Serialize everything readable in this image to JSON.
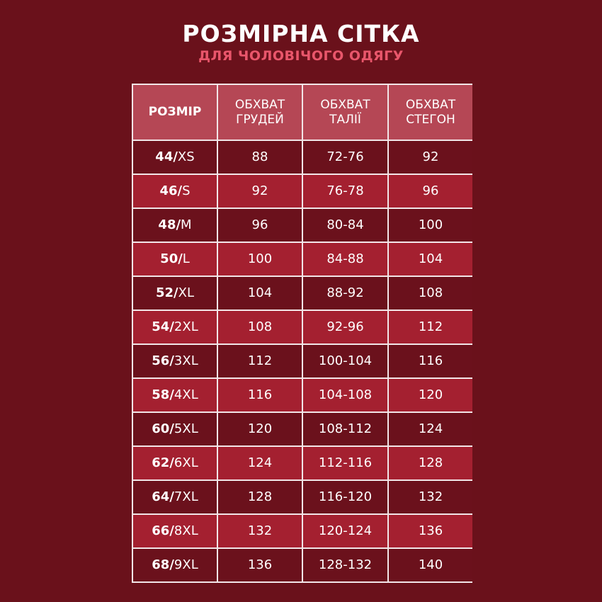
{
  "title": "РОЗМІРНА СІТКА",
  "subtitle": "ДЛЯ ЧОЛОВІЧОГО ОДЯГУ",
  "colors": {
    "background": "#6a111b",
    "header": "#b54755",
    "row_dark": "#6b111c",
    "row_light": "#a42030",
    "subtitle": "#e9566b"
  },
  "table": {
    "headers": [
      "РОЗМІР",
      "ОБХВАТ\nГРУДЕЙ",
      "ОБХВАТ\nТАЛІЇ",
      "ОБХВАТ\nСТЕГОН"
    ],
    "rows": [
      {
        "num": "44/",
        "letter": "XS",
        "chest": "88",
        "waist": "72-76",
        "hips": "92"
      },
      {
        "num": "46/",
        "letter": "S",
        "chest": "92",
        "waist": "76-78",
        "hips": "96"
      },
      {
        "num": "48/",
        "letter": "M",
        "chest": "96",
        "waist": "80-84",
        "hips": "100"
      },
      {
        "num": "50/",
        "letter": "L",
        "chest": "100",
        "waist": "84-88",
        "hips": "104"
      },
      {
        "num": "52/",
        "letter": "XL",
        "chest": "104",
        "waist": "88-92",
        "hips": "108"
      },
      {
        "num": "54/",
        "letter": "2XL",
        "chest": "108",
        "waist": "92-96",
        "hips": "112"
      },
      {
        "num": "56/",
        "letter": "3XL",
        "chest": "112",
        "waist": "100-104",
        "hips": "116"
      },
      {
        "num": "58/",
        "letter": "4XL",
        "chest": "116",
        "waist": "104-108",
        "hips": "120"
      },
      {
        "num": "60/",
        "letter": "5XL",
        "chest": "120",
        "waist": "108-112",
        "hips": "124"
      },
      {
        "num": "62/",
        "letter": "6XL",
        "chest": "124",
        "waist": "112-116",
        "hips": "128"
      },
      {
        "num": "64/",
        "letter": "7XL",
        "chest": "128",
        "waist": "116-120",
        "hips": "132"
      },
      {
        "num": "66/",
        "letter": "8XL",
        "chest": "132",
        "waist": "120-124",
        "hips": "136"
      },
      {
        "num": "68/",
        "letter": "9XL",
        "chest": "136",
        "waist": "128-132",
        "hips": "140"
      }
    ]
  }
}
